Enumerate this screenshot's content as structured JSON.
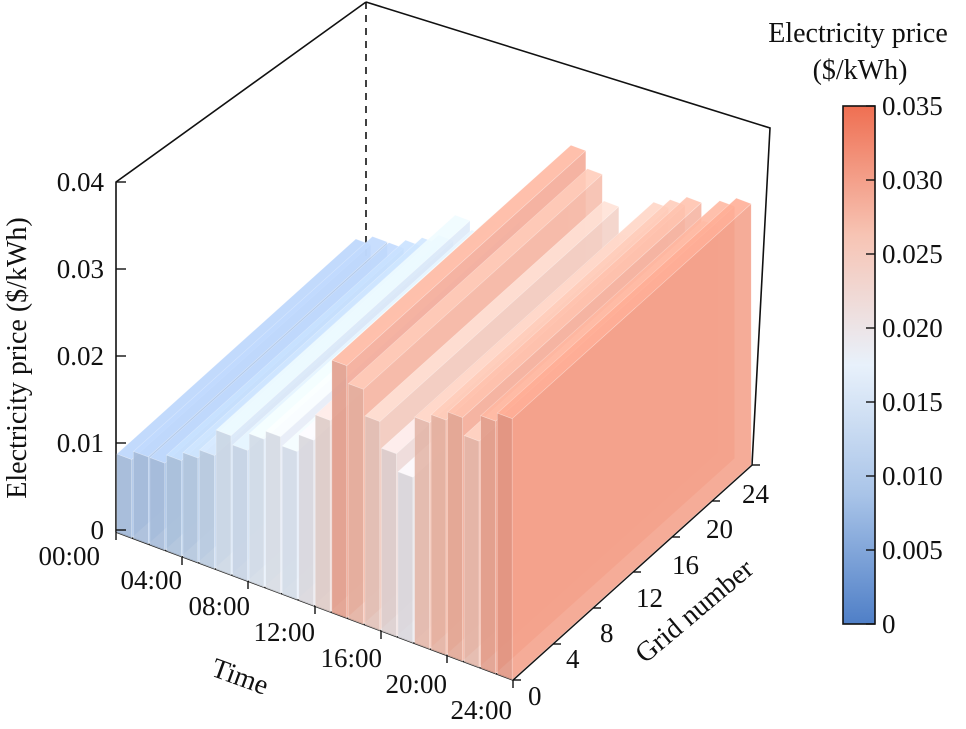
{
  "chart_data": {
    "type": "bar3d",
    "zlabel": "Electricity price ($/kWh)",
    "xlabel": "Time",
    "ylabel": "Grid number",
    "x_ticks": [
      "00:00",
      "04:00",
      "08:00",
      "12:00",
      "16:00",
      "20:00",
      "24:00"
    ],
    "y_ticks": [
      "0",
      "4",
      "8",
      "12",
      "16",
      "20",
      "24"
    ],
    "z_ticks": [
      "0",
      "0.01",
      "0.02",
      "0.03",
      "0.04"
    ],
    "zlim": [
      0,
      0.04
    ],
    "colorbar": {
      "title_line1": "Electricity price",
      "title_line2": "($/kWh)",
      "range": [
        0,
        0.035
      ],
      "ticks": [
        "0",
        "0.005",
        "0.010",
        "0.015",
        "0.020",
        "0.025",
        "0.030",
        "0.035"
      ],
      "colors": [
        "#4f7fc7",
        "#a9c4e8",
        "#e8f1fb",
        "#f7c4b4",
        "#ef6f52"
      ]
    },
    "series": [
      {
        "time": "00:00-01:00",
        "price": 0.009
      },
      {
        "time": "01:00-02:00",
        "price": 0.01
      },
      {
        "time": "02:00-03:00",
        "price": 0.01
      },
      {
        "time": "03:00-04:00",
        "price": 0.011
      },
      {
        "time": "04:00-05:00",
        "price": 0.012
      },
      {
        "time": "05:00-06:00",
        "price": 0.013
      },
      {
        "time": "06:00-07:00",
        "price": 0.016
      },
      {
        "time": "07:00-08:00",
        "price": 0.015
      },
      {
        "time": "08:00-09:00",
        "price": 0.017
      },
      {
        "time": "09:00-10:00",
        "price": 0.018
      },
      {
        "time": "10:00-11:00",
        "price": 0.017
      },
      {
        "time": "11:00-12:00",
        "price": 0.019
      },
      {
        "time": "12:00-13:00",
        "price": 0.022
      },
      {
        "time": "13:00-14:00",
        "price": 0.029
      },
      {
        "time": "14:00-15:00",
        "price": 0.027
      },
      {
        "time": "15:00-16:00",
        "price": 0.024
      },
      {
        "time": "16:00-17:00",
        "price": 0.021
      },
      {
        "time": "17:00-18:00",
        "price": 0.019
      },
      {
        "time": "18:00-19:00",
        "price": 0.026
      },
      {
        "time": "19:00-20:00",
        "price": 0.027
      },
      {
        "time": "20:00-21:00",
        "price": 0.028
      },
      {
        "time": "21:00-22:00",
        "price": 0.026
      },
      {
        "time": "22:00-23:00",
        "price": 0.029
      },
      {
        "time": "23:00-24:00",
        "price": 0.03
      }
    ]
  }
}
